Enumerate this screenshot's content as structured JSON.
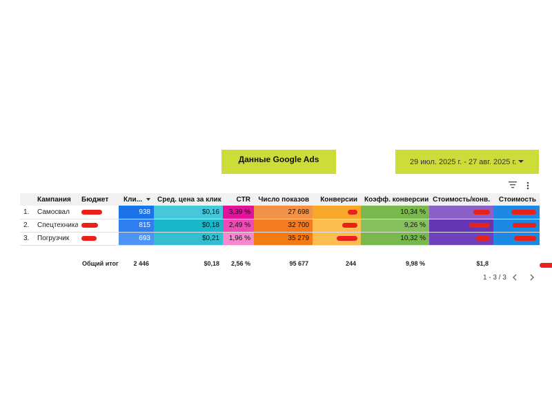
{
  "header": {
    "title": "Данные Google Ads",
    "date_range": "29 июл. 2025 г. - 27 авг. 2025 г."
  },
  "table": {
    "columns": [
      "Кампания",
      "Бюджет",
      "Кли...",
      "Сред. цена за клик",
      "CTR",
      "Число показов",
      "Конверсии",
      "Коэфф. конверсии",
      "Стоимость/конв.",
      "Стоимость"
    ],
    "rows": [
      {
        "index": "1.",
        "campaign": "Самосвал",
        "clicks": "938",
        "avg_cpc": "$0,16",
        "ctr": "3,39 %",
        "impressions": "27 698",
        "conv_rate": "10,34 %"
      },
      {
        "index": "2.",
        "campaign": "Спецтехника",
        "clicks": "815",
        "avg_cpc": "$0,18",
        "ctr": "2,49 %",
        "impressions": "32 700",
        "conv_rate": "9,26 %"
      },
      {
        "index": "3.",
        "campaign": "Погрузчик",
        "clicks": "693",
        "avg_cpc": "$0,21",
        "ctr": "1,96 %",
        "impressions": "35 279",
        "conv_rate": "10,32 %"
      }
    ],
    "totals": {
      "label": "Общий итог",
      "clicks": "2 446",
      "avg_cpc": "$0,18",
      "ctr": "2,56 %",
      "impressions": "95 677",
      "conversions": "244",
      "conv_rate": "9,98 %",
      "cost_per_conv": "$1,8"
    }
  },
  "pagination": {
    "label": "1 - 3 / 3"
  },
  "colors": {
    "accent": "#cddc39",
    "clicks": [
      "#1a73e8",
      "#2f7ff0",
      "#4e94f5"
    ],
    "avg_cpc": [
      "#46c8d9",
      "#19b7cc",
      "#34bfd0"
    ],
    "ctr": [
      "#e2139b",
      "#f04bb4",
      "#f38ad0"
    ],
    "impressions": [
      "#f29148",
      "#f47b1f",
      "#f47a14"
    ],
    "conversions": [
      "#f7a72a",
      "#fbbd4f",
      "#fbbd4f"
    ],
    "conv_rate": [
      "#79b84c",
      "#86c05c",
      "#79b84c"
    ],
    "cost_per_conv": [
      "#8a61c9",
      "#6537b7",
      "#6e42bc"
    ],
    "cost": [
      "#1e88e5",
      "#1e88e5",
      "#1e88e5"
    ],
    "redaction": "#e8211a"
  },
  "icons": [
    "filter-icon",
    "more-vert-icon",
    "chevron-left-icon",
    "chevron-right-icon",
    "sort-desc-icon",
    "dropdown-caret-icon"
  ]
}
